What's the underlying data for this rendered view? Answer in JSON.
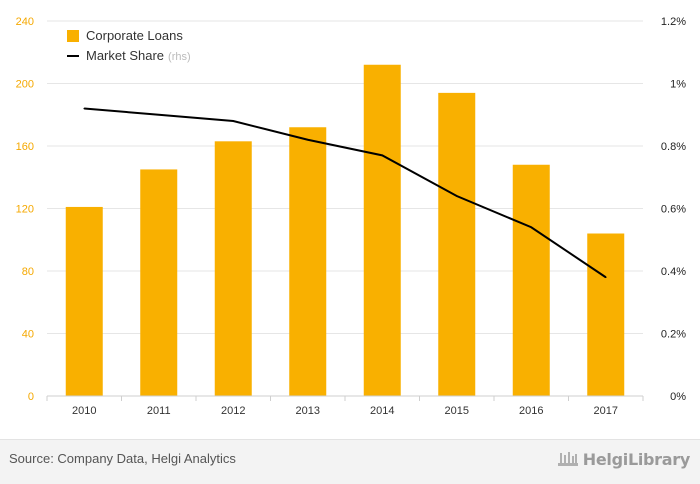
{
  "chart_data": {
    "type": "bar",
    "categories": [
      "2010",
      "2011",
      "2012",
      "2013",
      "2014",
      "2015",
      "2016",
      "2017"
    ],
    "series": [
      {
        "name": "Corporate Loans",
        "type": "bar",
        "axis": "left",
        "values": [
          121,
          145,
          163,
          172,
          212,
          194,
          148,
          104
        ]
      },
      {
        "name": "Market Share",
        "name_suffix": "(rhs)",
        "type": "line",
        "axis": "right",
        "values": [
          0.92,
          0.9,
          0.88,
          0.82,
          0.77,
          0.64,
          0.54,
          0.38
        ]
      }
    ],
    "ylim_left": [
      0,
      240
    ],
    "left_ticks": [
      "0",
      "40",
      "80",
      "120",
      "160",
      "200",
      "240"
    ],
    "ylim_right": [
      0,
      1.2
    ],
    "right_ticks": [
      "0%",
      "0.2%",
      "0.4%",
      "0.6%",
      "0.8%",
      "1%",
      "1.2%"
    ],
    "grid": true,
    "legend_position": "top-left",
    "colors": {
      "bar": "#f9b000",
      "line": "#000000",
      "left_axis_text": "#f5a800",
      "grid": "#e6e6e6"
    }
  },
  "footer": {
    "source": "Source: Company Data, Helgi Analytics",
    "brand": "HelgiLibrary"
  }
}
